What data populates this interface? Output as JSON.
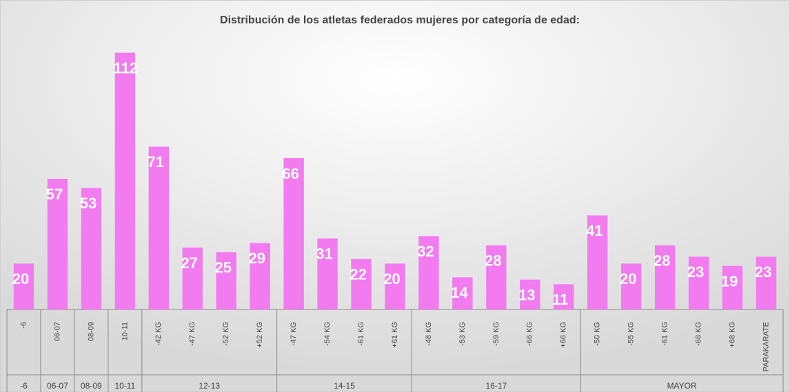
{
  "chart_data": {
    "type": "bar",
    "title": "Distribución de los atletas federados mujeres por categoría de edad:",
    "categories": [
      "-6",
      "06-07",
      "08-09",
      "10-11",
      "-42 KG",
      "-47 KG",
      "-52 KG",
      "+52 KG",
      "-47 KG",
      "-54 KG",
      "-61 KG",
      "+61 KG",
      "-48 KG",
      "-53 KG",
      "-59 KG",
      "-66 KG",
      "+66 KG",
      "-50 KG",
      "-55 KG",
      "-61 KG",
      "-68 KG",
      "+68 KG",
      "PARAKARATE"
    ],
    "groups": [
      {
        "label": "-6",
        "span": 1
      },
      {
        "label": "06-07",
        "span": 1
      },
      {
        "label": "08-09",
        "span": 1
      },
      {
        "label": "10-11",
        "span": 1
      },
      {
        "label": "12-13",
        "span": 4
      },
      {
        "label": "14-15",
        "span": 4
      },
      {
        "label": "16-17",
        "span": 5
      },
      {
        "label": "MAYOR",
        "span": 6
      }
    ],
    "values": [
      20,
      57,
      53,
      112,
      71,
      27,
      25,
      29,
      66,
      31,
      22,
      20,
      32,
      14,
      28,
      13,
      11,
      41,
      20,
      28,
      23,
      19,
      23
    ],
    "color": "#f27bef",
    "ylim": [
      0,
      120
    ]
  }
}
